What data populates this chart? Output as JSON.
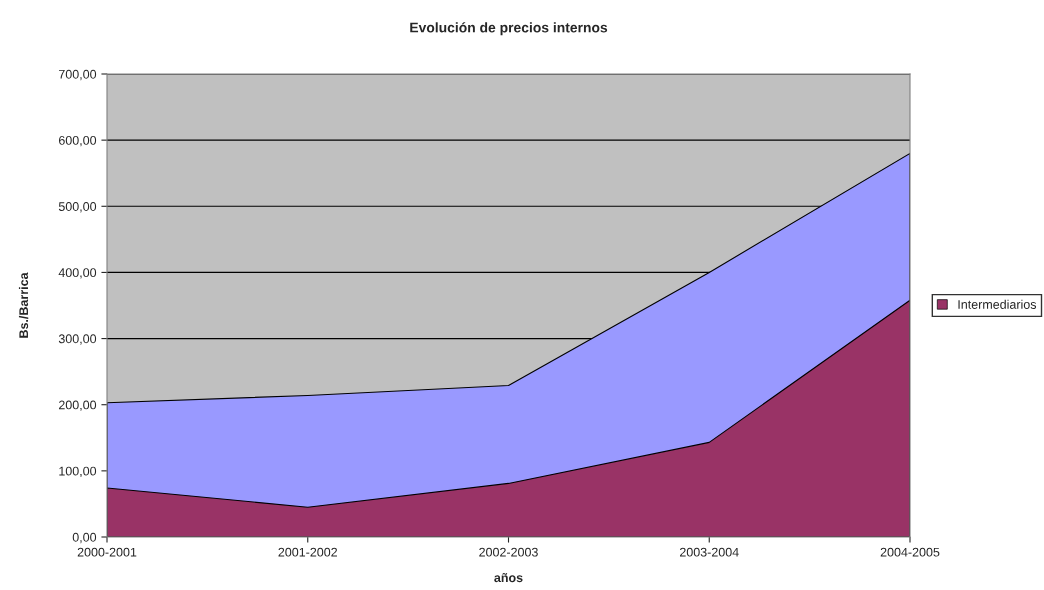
{
  "chart_data": {
    "type": "area",
    "title": "Evolución de precios internos",
    "xlabel": "años",
    "ylabel": "Bs./Barrica",
    "categories": [
      "2000-2001",
      "2001-2002",
      "2002-2003",
      "2003-2004",
      "2004-2005"
    ],
    "series": [
      {
        "color": "#9999ff",
        "values": [
          203,
          214,
          229,
          400,
          580
        ]
      },
      {
        "name": "Intermediarios",
        "color": "#993366",
        "values": [
          74,
          45,
          81,
          143,
          358
        ]
      }
    ],
    "ylim": [
      0,
      700
    ],
    "yticks": [
      {
        "value": 0,
        "label": "0,00"
      },
      {
        "value": 100,
        "label": "100,00"
      },
      {
        "value": 200,
        "label": "200,00"
      },
      {
        "value": 300,
        "label": "300,00"
      },
      {
        "value": 400,
        "label": "400,00"
      },
      {
        "value": 500,
        "label": "500,00"
      },
      {
        "value": 600,
        "label": "600,00"
      },
      {
        "value": 700,
        "label": "700,00"
      }
    ],
    "grid": "y",
    "legend": "right"
  }
}
